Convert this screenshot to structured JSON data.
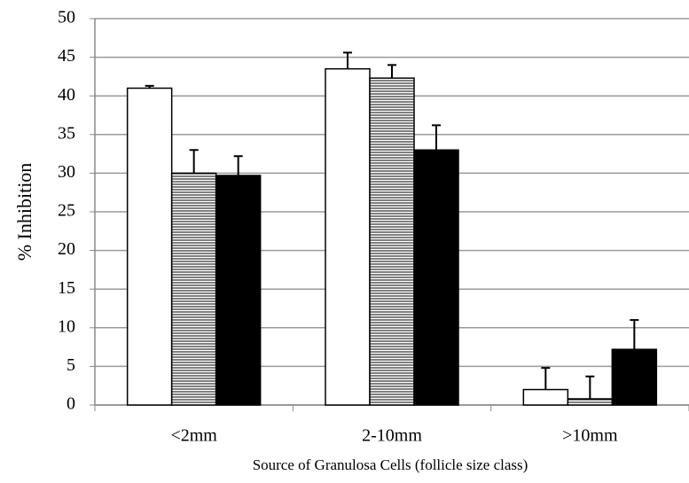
{
  "chart_data": {
    "type": "bar",
    "x_label": "Source of Granulosa Cells (follicle size class)",
    "y_label": "% Inhibition",
    "categories": [
      "<2mm",
      "2-10mm",
      ">10mm"
    ],
    "series": [
      {
        "color": "#ffffff",
        "values": [
          41,
          43.5,
          2
        ],
        "errors": [
          0.3,
          2.1,
          2.8
        ]
      },
      {
        "color": "#ffffff",
        "hatch": "horizontal",
        "values": [
          30,
          42.3,
          0.8
        ],
        "errors": [
          3,
          1.7,
          2.9
        ]
      },
      {
        "color": "#000000",
        "values": [
          29.7,
          33,
          7.2
        ],
        "errors": [
          2.5,
          3.2,
          3.8
        ]
      }
    ],
    "ylim": [
      0,
      50
    ],
    "yticks": [
      0,
      5,
      10,
      15,
      20,
      25,
      30,
      35,
      40,
      45,
      50
    ],
    "grid": true
  }
}
